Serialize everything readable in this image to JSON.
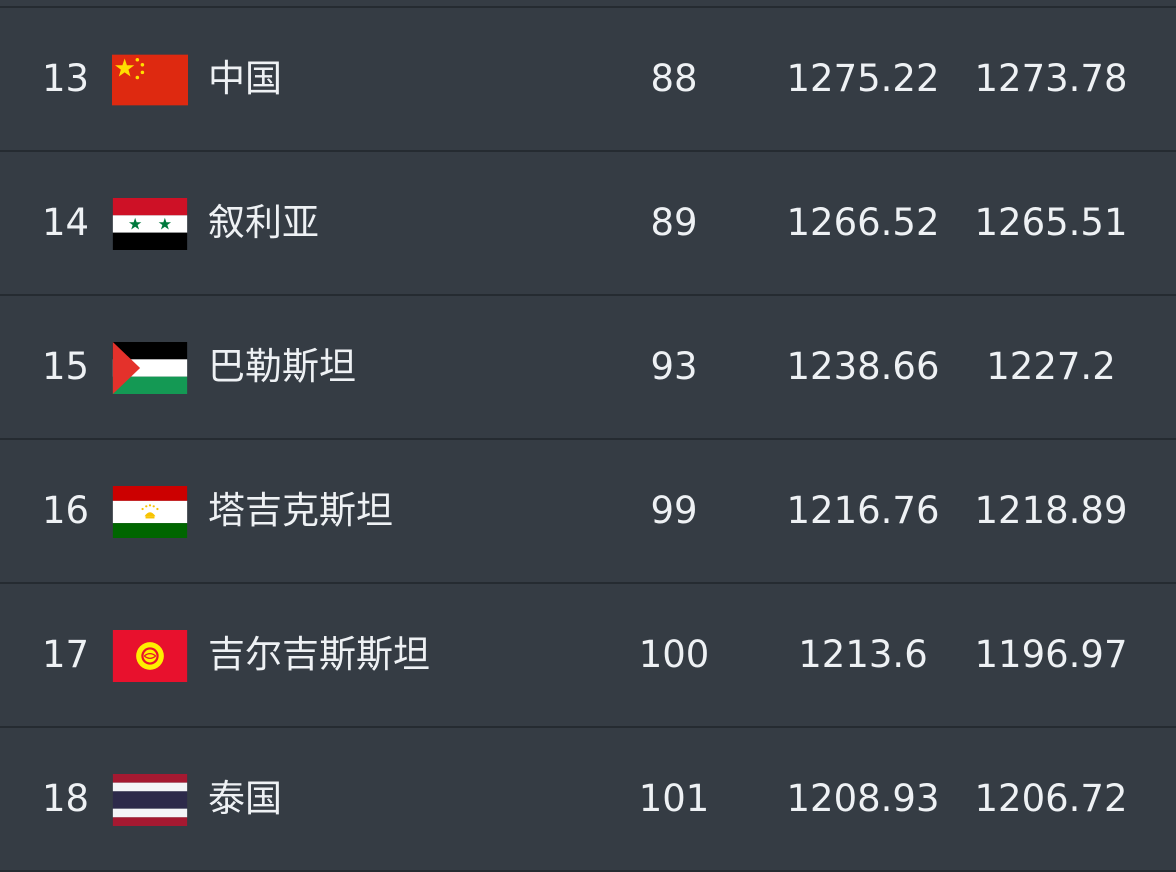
{
  "rankings": {
    "rows": [
      {
        "rank": "13",
        "country": "中国",
        "flag": "china-flag",
        "fifa_rank": "88",
        "points_current": "1275.22",
        "points_previous": "1273.78"
      },
      {
        "rank": "14",
        "country": "叙利亚",
        "flag": "syria-flag",
        "fifa_rank": "89",
        "points_current": "1266.52",
        "points_previous": "1265.51"
      },
      {
        "rank": "15",
        "country": "巴勒斯坦",
        "flag": "palestine-flag",
        "fifa_rank": "93",
        "points_current": "1238.66",
        "points_previous": "1227.2"
      },
      {
        "rank": "16",
        "country": "塔吉克斯坦",
        "flag": "tajikistan-flag",
        "fifa_rank": "99",
        "points_current": "1216.76",
        "points_previous": "1218.89"
      },
      {
        "rank": "17",
        "country": "吉尔吉斯斯坦",
        "flag": "kyrgyzstan-flag",
        "fifa_rank": "100",
        "points_current": "1213.6",
        "points_previous": "1196.97"
      },
      {
        "rank": "18",
        "country": "泰国",
        "flag": "thailand-flag",
        "fifa_rank": "101",
        "points_current": "1208.93",
        "points_previous": "1206.72"
      }
    ]
  },
  "colors": {
    "background": "#353c44",
    "divider": "#252b31",
    "text": "#eef1f4"
  }
}
